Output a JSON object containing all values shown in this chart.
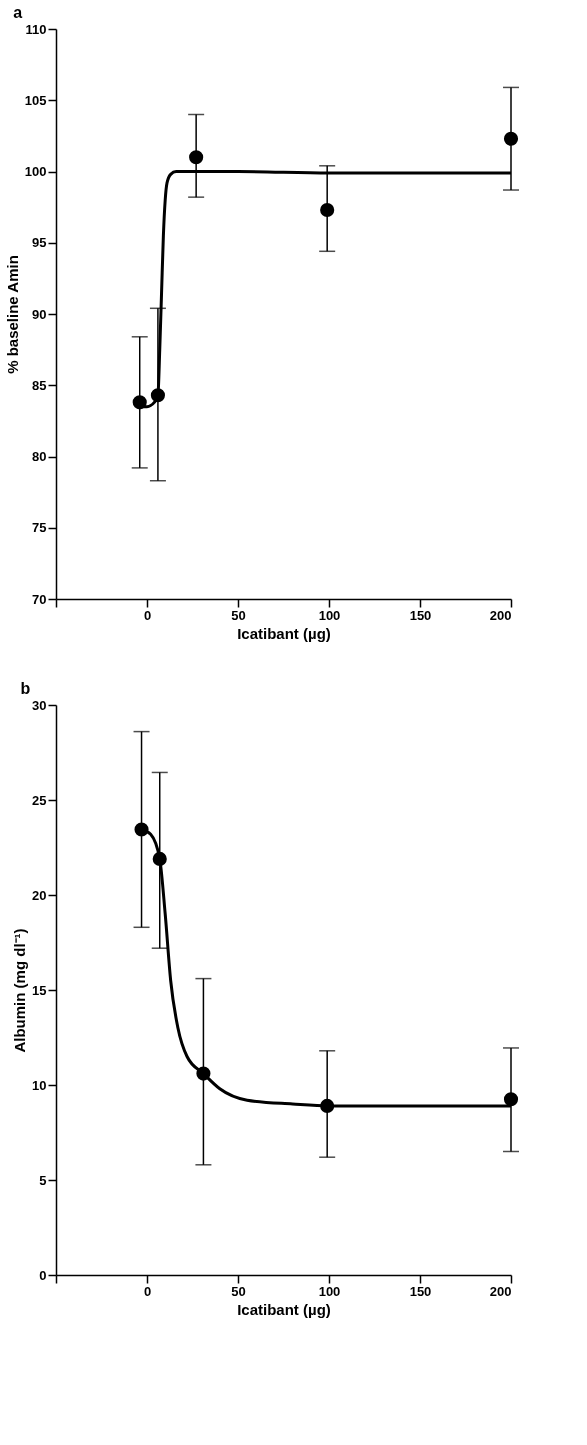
{
  "chart_data": [
    {
      "type": "scatter",
      "title": "a",
      "xlabel": "Icatibant (µg)",
      "ylabel": "% baseline Amin",
      "xlim": [
        -50,
        200
      ],
      "xticks": [
        {
          "value": -50,
          "label": null
        },
        0,
        50,
        100,
        150,
        200
      ],
      "ylim": [
        70,
        110
      ],
      "yticks": [
        70,
        75,
        80,
        85,
        90,
        95,
        100,
        105,
        110
      ],
      "grid": false,
      "series": [
        {
          "color": "#000000",
          "marker": "circle",
          "x": [
            -4,
            6,
            27,
            99,
            200
          ],
          "values": [
            83.8,
            84.3,
            101.0,
            97.3,
            102.3
          ],
          "errors": [
            [
              79.2,
              88.4
            ],
            [
              78.3,
              90.4
            ],
            [
              98.2,
              104.0
            ],
            [
              94.4,
              100.4
            ],
            [
              98.7,
              105.9
            ]
          ]
        },
        {
          "type": "line",
          "color": "#000000",
          "marker": "none",
          "line_style": "solid",
          "x": [
            -4,
            0,
            4,
            6,
            7,
            8,
            9,
            10,
            11,
            13,
            16,
            20,
            50,
            100,
            150,
            200
          ],
          "values": [
            83.5,
            83.5,
            83.8,
            84.3,
            87.5,
            91.5,
            95.5,
            98.0,
            99.2,
            99.8,
            100.0,
            100.0,
            100.0,
            99.9,
            99.9,
            99.9
          ]
        }
      ]
    },
    {
      "type": "scatter",
      "title": "b",
      "xlabel": "Icatibant (µg)",
      "ylabel": "Albumin (mg dl⁻¹)",
      "xlim": [
        -50,
        200
      ],
      "xticks": [
        {
          "value": -50,
          "label": null
        },
        0,
        50,
        100,
        150,
        200
      ],
      "ylim": [
        0,
        30
      ],
      "yticks": [
        0,
        5,
        10,
        15,
        20,
        25,
        30
      ],
      "grid": false,
      "series": [
        {
          "color": "#000000",
          "marker": "circle",
          "x": [
            -3,
            7,
            31,
            99,
            200
          ],
          "values": [
            23.45,
            21.9,
            10.6,
            8.9,
            9.25
          ],
          "errors": [
            [
              18.3,
              28.6
            ],
            [
              17.2,
              26.45
            ],
            [
              5.8,
              15.6
            ],
            [
              6.2,
              11.8
            ],
            [
              6.5,
              11.95
            ]
          ]
        },
        {
          "type": "line",
          "color": "#000000",
          "marker": "none",
          "line_style": "solid",
          "x": [
            -3,
            2,
            7,
            10,
            13,
            17,
            22,
            31,
            40,
            55,
            80,
            100,
            150,
            200
          ],
          "values": [
            23.45,
            23.2,
            21.9,
            19.0,
            15.5,
            13.0,
            11.5,
            10.6,
            9.8,
            9.2,
            9.0,
            8.9,
            8.9,
            8.9
          ]
        }
      ]
    }
  ]
}
